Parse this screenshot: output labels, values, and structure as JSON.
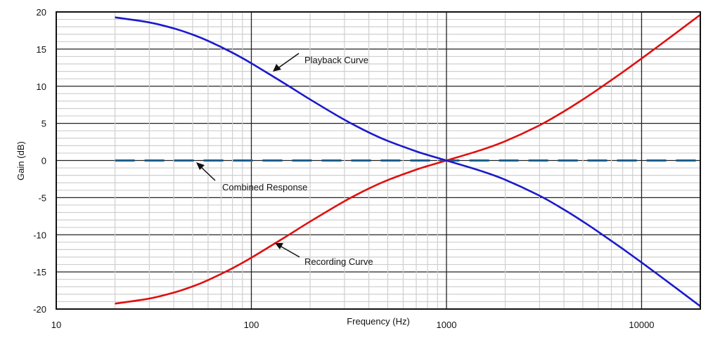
{
  "chart_data": {
    "type": "line",
    "title": "",
    "xlabel": "Frequency (Hz)",
    "ylabel": "Gain (dB)",
    "x_scale": "log",
    "xlim": [
      10,
      20000
    ],
    "ylim": [
      -20,
      20
    ],
    "x_ticks": [
      "10",
      "100",
      "1000",
      "10000"
    ],
    "y_ticks": [
      "20",
      "15",
      "10",
      "5",
      "0",
      "-5",
      "-10",
      "-15",
      "-20"
    ],
    "grid": true,
    "x": [
      20,
      30,
      40,
      50,
      60,
      80,
      100,
      150,
      200,
      300,
      400,
      500,
      700,
      800,
      1000,
      1500,
      2000,
      3000,
      4000,
      5000,
      6000,
      8000,
      10000,
      12000,
      15000,
      20000
    ],
    "series": [
      {
        "name": "Playback Curve",
        "color": "#1a1acc",
        "values": [
          19.27,
          18.59,
          17.79,
          16.95,
          16.1,
          14.51,
          13.09,
          10.27,
          8.22,
          5.48,
          3.78,
          2.64,
          1.23,
          0.75,
          0,
          -1.4,
          -2.59,
          -4.74,
          -6.61,
          -8.21,
          -9.6,
          -11.89,
          -13.73,
          -15.26,
          -17.16,
          -19.62
        ]
      },
      {
        "name": "Recording Curve",
        "color": "#e01010",
        "values": [
          -19.27,
          -18.59,
          -17.79,
          -16.95,
          -16.1,
          -14.51,
          -13.09,
          -10.27,
          -8.22,
          -5.48,
          -3.78,
          -2.64,
          -1.23,
          -0.75,
          0,
          1.4,
          2.59,
          4.74,
          6.61,
          8.21,
          9.6,
          11.89,
          13.73,
          15.26,
          17.16,
          19.62
        ]
      },
      {
        "name": "Combined Response",
        "color": "#1f5f8b",
        "dashed": true,
        "values": [
          0,
          0,
          0,
          0,
          0,
          0,
          0,
          0,
          0,
          0,
          0,
          0,
          0,
          0,
          0,
          0,
          0,
          0,
          0,
          0,
          0,
          0,
          0,
          0,
          0,
          0
        ]
      }
    ],
    "annotations": [
      {
        "text": "Playback Curve",
        "target": "Playback Curve"
      },
      {
        "text": "Combined Response",
        "target": "Combined Response"
      },
      {
        "text": "Recording Curve",
        "target": "Recording Curve"
      }
    ]
  }
}
